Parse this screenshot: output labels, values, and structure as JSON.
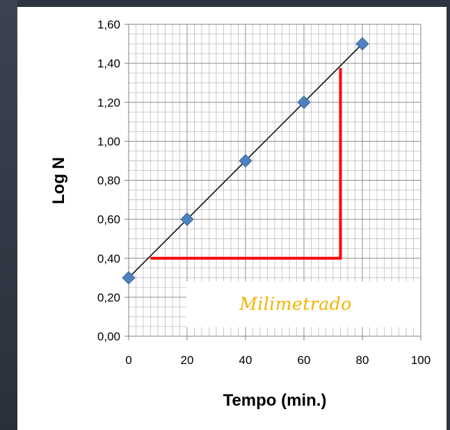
{
  "chart_data": {
    "type": "scatter",
    "xlabel": "Tempo (min.)",
    "ylabel": "Log N",
    "xlim": [
      0,
      100
    ],
    "ylim": [
      0,
      1.6
    ],
    "x_ticks": [
      "0",
      "20",
      "40",
      "60",
      "80",
      "100"
    ],
    "y_ticks": [
      "0,00",
      "0,20",
      "0,40",
      "0,60",
      "0,80",
      "1,00",
      "1,20",
      "1,40",
      "1,60"
    ],
    "series": [
      {
        "x": [
          0,
          20,
          40,
          60,
          80
        ],
        "values": [
          0.3,
          0.6,
          0.9,
          1.2,
          1.5
        ],
        "marker": "diamond",
        "color": "#4f81bd"
      }
    ],
    "trendline": {
      "x": [
        0,
        80
      ],
      "y": [
        0.3,
        1.5
      ],
      "color": "#000000"
    },
    "slope_triangle": {
      "x_start": 7.5,
      "x_end": 72.5,
      "y_base": 0.4,
      "y_top": 1.375,
      "color": "#ff0000"
    },
    "grid": "millimeter",
    "annotation": "Milimetrado",
    "annotation_color": "#f2b200"
  }
}
